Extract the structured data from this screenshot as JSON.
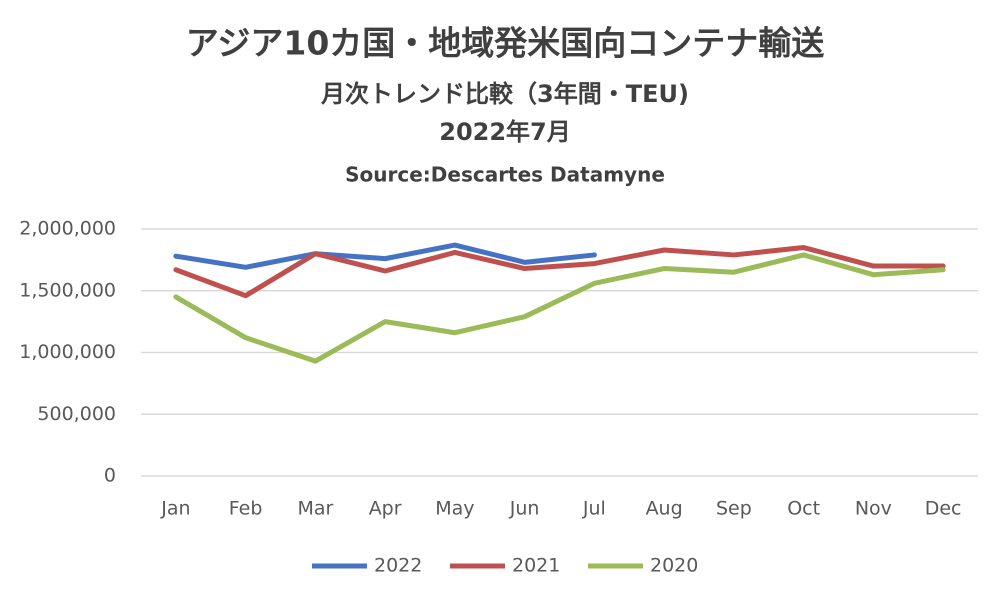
{
  "chart_data": {
    "type": "line",
    "title": "アジア10カ国・地域発米国向コンテナ輸送",
    "subtitle": "月次トレンド比較（3年間・TEU)",
    "date": "2022年7月",
    "source": "Source:Descartes Datamyne",
    "categories": [
      "Jan",
      "Feb",
      "Mar",
      "Apr",
      "May",
      "Jun",
      "Jul",
      "Aug",
      "Sep",
      "Oct",
      "Nov",
      "Dec"
    ],
    "series": [
      {
        "name": "2022",
        "color": "#4472c4",
        "values": [
          1780000,
          1690000,
          1800000,
          1760000,
          1870000,
          1730000,
          1790000,
          null,
          null,
          null,
          null,
          null
        ]
      },
      {
        "name": "2021",
        "color": "#c0504d",
        "values": [
          1670000,
          1460000,
          1800000,
          1660000,
          1810000,
          1680000,
          1720000,
          1830000,
          1790000,
          1850000,
          1700000,
          1700000
        ]
      },
      {
        "name": "2020",
        "color": "#9bbb59",
        "values": [
          1450000,
          1120000,
          930000,
          1250000,
          1160000,
          1290000,
          1560000,
          1680000,
          1650000,
          1790000,
          1630000,
          1670000
        ]
      }
    ],
    "ylim": [
      0,
      2000000
    ],
    "yticks": [
      0,
      {
        "value": 500000,
        "label": "500,000"
      },
      {
        "value": 1000000,
        "label": "1,000,000"
      },
      {
        "value": 1500000,
        "label": "1,500,000"
      },
      {
        "value": 2000000,
        "label": "2,000,000"
      }
    ],
    "grid": true,
    "legend": "bottom"
  }
}
